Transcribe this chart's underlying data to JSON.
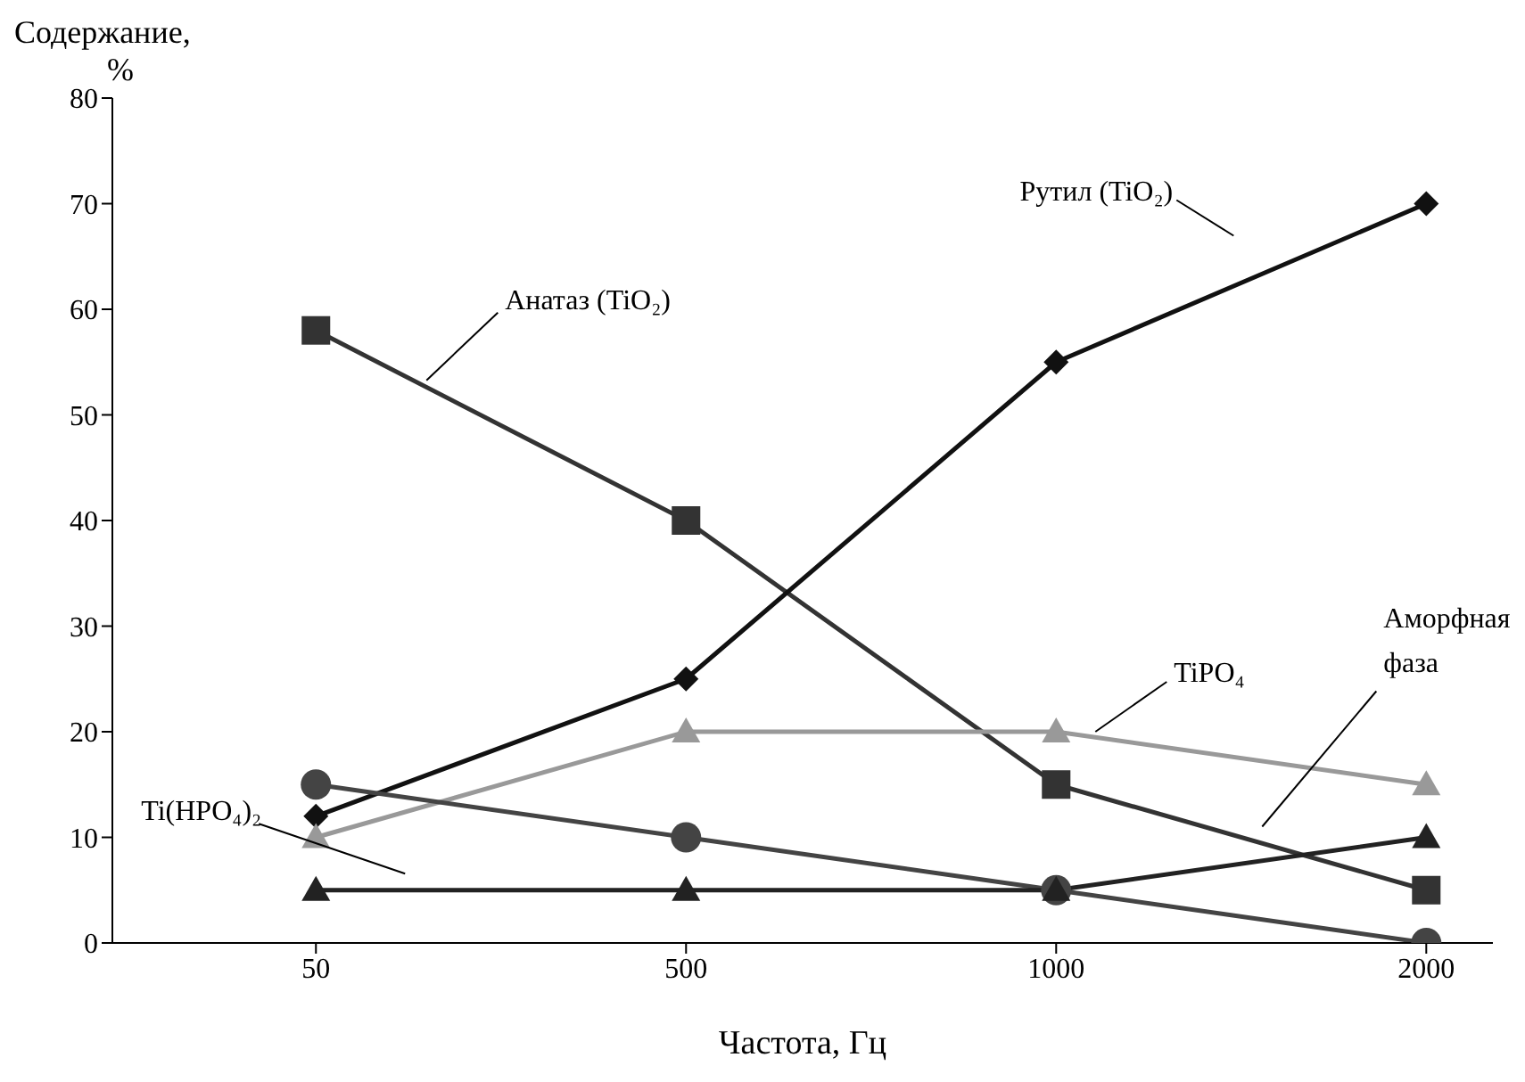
{
  "chart_data": {
    "type": "line",
    "xlabel": "Частота, Гц",
    "ylabel": "Содержание, %",
    "categories": [
      "50",
      "500",
      "1000",
      "2000"
    ],
    "series": [
      {
        "name": "Анатаз (TiO₂)",
        "color": "#333333",
        "marker": "square",
        "values": [
          58,
          40,
          15,
          5
        ]
      },
      {
        "name": "Рутил (TiO₂)",
        "color": "#111111",
        "marker": "diamond",
        "values": [
          12,
          25,
          55,
          70
        ]
      },
      {
        "name": "TiPO₄",
        "color": "#999999",
        "marker": "triangle",
        "values": [
          10,
          20,
          20,
          15
        ]
      },
      {
        "name": "Ti(HPO₄)₂",
        "color": "#444444",
        "marker": "circle",
        "values": [
          15,
          10,
          5,
          0
        ]
      },
      {
        "name": "Аморфная фаза",
        "color": "#222222",
        "marker": "triangle",
        "values": [
          5,
          5,
          5,
          10
        ]
      }
    ],
    "ylim": [
      0,
      80
    ],
    "yticks": [
      0,
      10,
      20,
      30,
      40,
      50,
      60,
      70,
      80
    ],
    "grid": false,
    "legend": false
  }
}
